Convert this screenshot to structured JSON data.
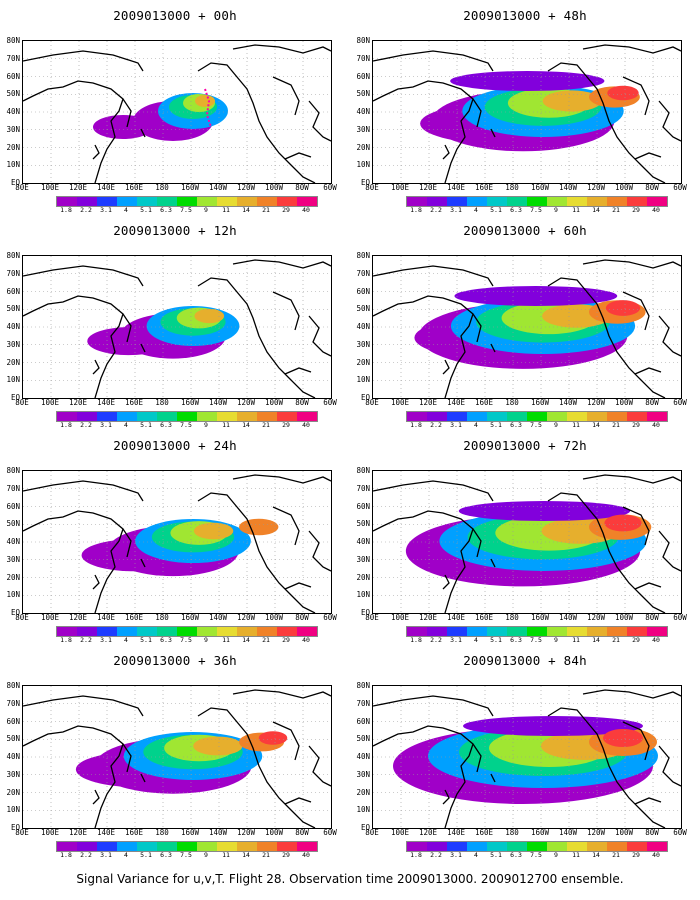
{
  "caption": "Signal Variance for u,v,T. Flight 28. Observation time 2009013000. 2009012700 ensemble.",
  "panels": [
    {
      "title": "2009013000 + 00h",
      "hour": 0
    },
    {
      "title": "2009013000 + 48h",
      "hour": 48
    },
    {
      "title": "2009013000 + 12h",
      "hour": 12
    },
    {
      "title": "2009013000 + 60h",
      "hour": 60
    },
    {
      "title": "2009013000 + 24h",
      "hour": 24
    },
    {
      "title": "2009013000 + 72h",
      "hour": 72
    },
    {
      "title": "2009013000 + 36h",
      "hour": 36
    },
    {
      "title": "2009013000 + 84h",
      "hour": 84
    }
  ],
  "lon_labels": [
    "80E",
    "100E",
    "120E",
    "140E",
    "160E",
    "180",
    "160W",
    "140W",
    "120W",
    "100W",
    "80W",
    "60W"
  ],
  "lat_labels": [
    "80N",
    "70N",
    "60N",
    "50N",
    "40N",
    "30N",
    "20N",
    "10N",
    "EQ"
  ],
  "colorbar": {
    "levels": [
      "1.8",
      "2.2",
      "3.1",
      "4",
      "5.1",
      "6.3",
      "7.5",
      "9",
      "11",
      "14",
      "21",
      "29",
      "40"
    ],
    "colors": [
      "#a000c8",
      "#8200dc",
      "#1e3cff",
      "#00a0ff",
      "#00c8c8",
      "#00d28c",
      "#00dc00",
      "#a0e632",
      "#e6dc32",
      "#e6af2d",
      "#f08228",
      "#fa3c3c",
      "#f00082"
    ]
  }
}
